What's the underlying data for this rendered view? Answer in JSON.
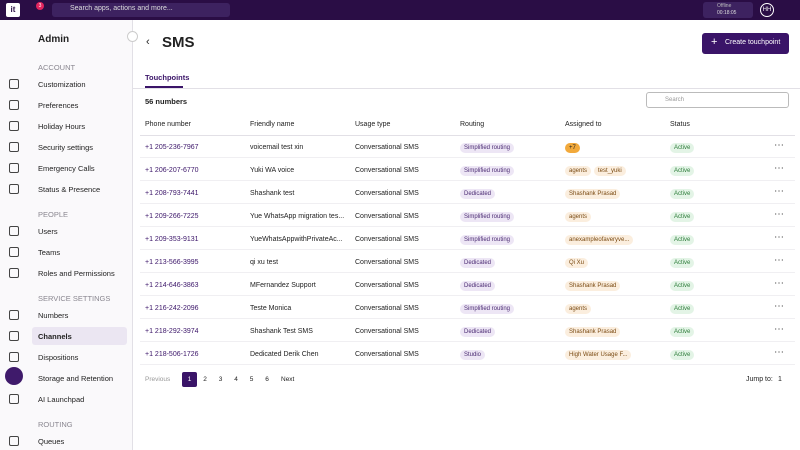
{
  "topbar": {
    "logo": "it",
    "notification_count": "3",
    "search_placeholder": "Search apps, actions and more...",
    "status": "Offline",
    "timer": "00:18:05",
    "avatar": "HH"
  },
  "sidebar": {
    "title": "Admin",
    "sections": [
      {
        "heading": "ACCOUNT",
        "items": [
          "Customization",
          "Preferences",
          "Holiday Hours",
          "Security settings",
          "Emergency Calls",
          "Status & Presence"
        ]
      },
      {
        "heading": "PEOPLE",
        "items": [
          "Users",
          "Teams",
          "Roles and Permissions"
        ]
      },
      {
        "heading": "SERVICE SETTINGS",
        "items": [
          "Numbers",
          "Channels",
          "Dispositions",
          "Storage and Retention",
          "AI Launchpad"
        ]
      },
      {
        "heading": "ROUTING",
        "items": [
          "Queues"
        ]
      }
    ]
  },
  "header": {
    "title": "SMS",
    "button": "Create touchpoint"
  },
  "tab": "Touchpoints",
  "count": "56 numbers",
  "search_placeholder": "Search",
  "table": {
    "columns": [
      "Phone number",
      "Friendly name",
      "Usage type",
      "Routing",
      "Assigned to",
      "Status"
    ],
    "rows": [
      [
        "+1 205-236-7967",
        "voicemail test xin",
        "Conversational SMS",
        "Simplified routing",
        [
          "+7"
        ],
        "Active"
      ],
      [
        "+1 206-207-6770",
        "Yuki WA voice",
        "Conversational SMS",
        "Simplified routing",
        [
          "agents",
          "test_yuki"
        ],
        "Active"
      ],
      [
        "+1 208-793-7441",
        "Shashank test",
        "Conversational SMS",
        "Dedicated",
        [
          "Shashank Prasad"
        ],
        "Active"
      ],
      [
        "+1 209-266-7225",
        "Yue WhatsApp migration tes...",
        "Conversational SMS",
        "Simplified routing",
        [
          "agents"
        ],
        "Active"
      ],
      [
        "+1 209-353-9131",
        "YueWhatsAppwithPrivateAc...",
        "Conversational SMS",
        "Simplified routing",
        [
          "anexampleofaveryve..."
        ],
        "Active"
      ],
      [
        "+1 213-566-3995",
        "qi xu test",
        "Conversational SMS",
        "Dedicated",
        [
          "Qi Xu"
        ],
        "Active"
      ],
      [
        "+1 214-646-3863",
        "MFernandez Support",
        "Conversational SMS",
        "Dedicated",
        [
          "Shashank Prasad"
        ],
        "Active"
      ],
      [
        "+1 216-242-2096",
        "Teste Monica",
        "Conversational SMS",
        "Simplified routing",
        [
          "agents"
        ],
        "Active"
      ],
      [
        "+1 218-292-3974",
        "Shashank Test SMS",
        "Conversational SMS",
        "Dedicated",
        [
          "Shashank Prasad"
        ],
        "Active"
      ],
      [
        "+1 218-506-1726",
        "Dedicated Derik Chen",
        "Conversational SMS",
        "Studio",
        [
          "High Water Usage F..."
        ],
        "Active"
      ]
    ]
  },
  "pagination": {
    "previous": "Previous",
    "pages": [
      "1",
      "2",
      "3",
      "4",
      "5",
      "6"
    ],
    "next": "Next",
    "jump_label": "Jump to:",
    "jump_value": "1"
  }
}
